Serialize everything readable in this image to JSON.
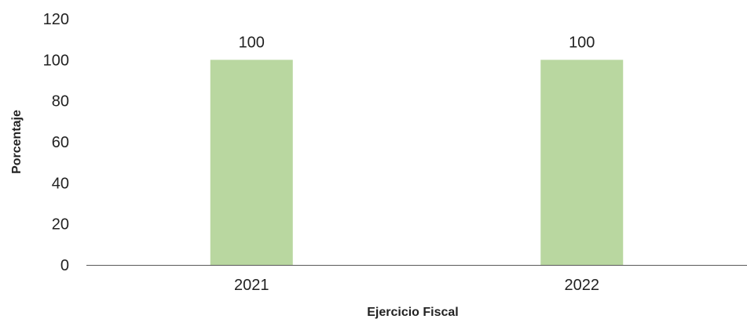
{
  "chart_data": {
    "type": "bar",
    "categories": [
      "2021",
      "2022"
    ],
    "series": [
      {
        "values": [
          100,
          100
        ]
      }
    ],
    "xlabel": "Ejercicio Fiscal",
    "ylabel": "Porcentaje",
    "ylim": [
      0,
      120
    ],
    "yticks": [
      0,
      20,
      40,
      60,
      80,
      100,
      120
    ],
    "data_labels": [
      "100",
      "100"
    ],
    "bar_color": "#b9d7a0",
    "axis_color": "#595959",
    "grid": false,
    "legend": "none"
  }
}
